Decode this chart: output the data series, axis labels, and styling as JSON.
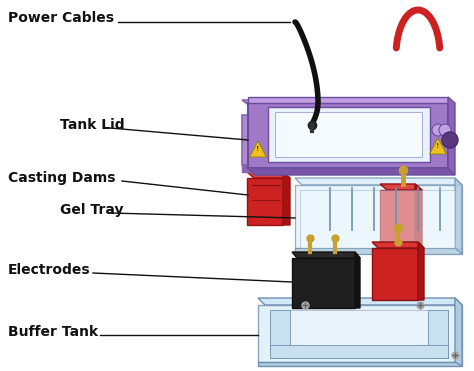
{
  "labels": {
    "power_cables": "Power Cables",
    "tank_lid": "Tank Lid",
    "casting_dams": "Casting Dams",
    "gel_tray": "Gel Tray",
    "electrodes": "Electrodes",
    "buffer_tank": "Buffer Tank"
  },
  "colors": {
    "background": "#ffffff",
    "lid_top": "#b08ad0",
    "lid_side": "#8b65b0",
    "lid_front": "#9b75c0",
    "lid_window": "#e8f0f8",
    "lid_inner": "#c0a8e0",
    "dam_front": "#cc2222",
    "dam_top": "#dd4444",
    "dam_side": "#aa1111",
    "tray_top": "#d8eaf8",
    "tray_side": "#b0cce0",
    "tray_front": "#c0d8ec",
    "tray_edge": "#7090b0",
    "elec_black_top": "#2a2a2a",
    "elec_black_side": "#111111",
    "elec_black_front": "#1a1a1a",
    "elec_red_top": "#dd3333",
    "elec_red_side": "#aa1111",
    "elec_red_front": "#cc2222",
    "tank_top": "#d8eaf8",
    "tank_side": "#b0cce0",
    "tank_front": "#c0d8ec",
    "tank_edge": "#7090b0",
    "cable_black": "#111111",
    "cable_red": "#cc2222",
    "gold": "#c8a030",
    "warn_yellow": "#f0c020",
    "label_color": "#111111",
    "line_color": "#111111"
  },
  "figsize": [
    4.74,
    3.71
  ],
  "dpi": 100
}
